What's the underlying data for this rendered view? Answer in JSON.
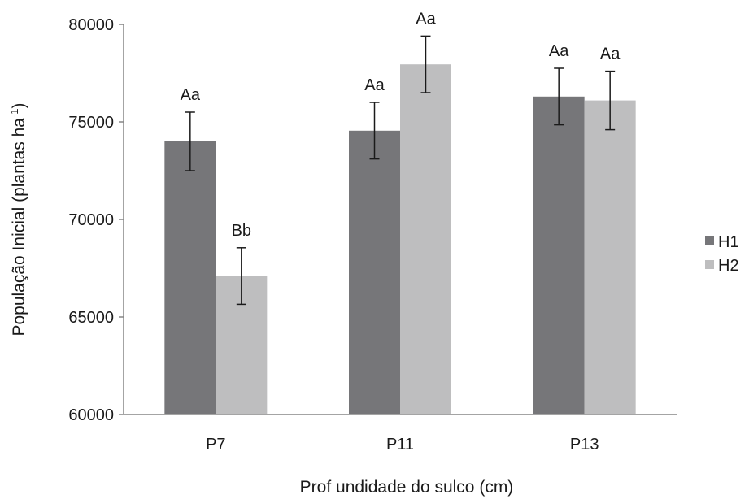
{
  "chart_data": {
    "type": "bar",
    "categories": [
      "P7",
      "P11",
      "P13"
    ],
    "series": [
      {
        "name": "H1",
        "color": "#767679",
        "values": [
          74000,
          74550,
          76300
        ],
        "errors": [
          1500,
          1450,
          1450
        ],
        "labels": [
          "Aa",
          "Aa",
          "Aa"
        ]
      },
      {
        "name": "H2",
        "color": "#bebebf",
        "values": [
          67100,
          77950,
          76100
        ],
        "errors": [
          1450,
          1450,
          1500
        ],
        "labels": [
          "Bb",
          "Aa",
          "Aa"
        ]
      }
    ],
    "xlabel": "Prof undidade do sulco (cm)",
    "ylabel_main": "População Inicial (plantas ha",
    "ylabel_sup": "-1",
    "ylabel_tail": ")",
    "ylim": [
      60000,
      80000
    ],
    "yticks": [
      60000,
      65000,
      70000,
      75000,
      80000
    ],
    "ytick_labels": [
      "60000",
      "65000",
      "70000",
      "75000",
      "80000"
    ],
    "grid": false,
    "legend_position": "right"
  }
}
